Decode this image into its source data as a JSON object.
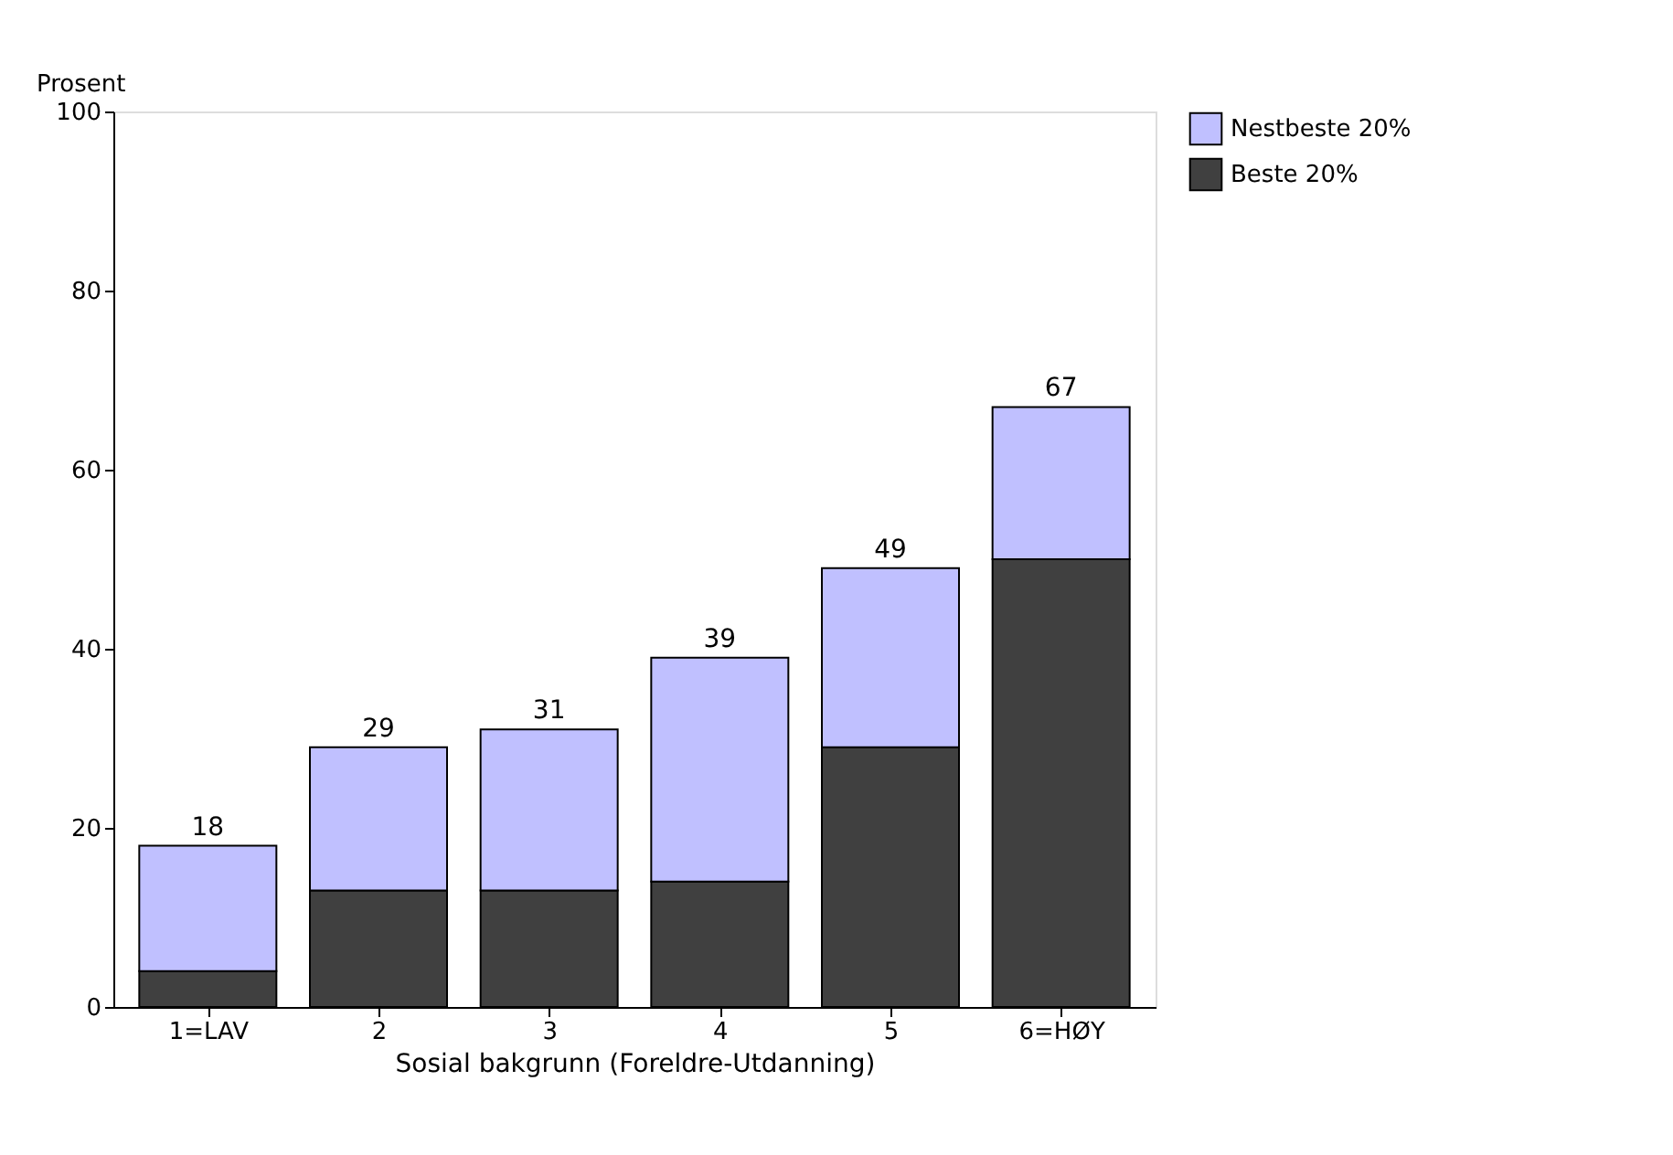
{
  "chart_data": {
    "type": "bar",
    "stacked": true,
    "xlabel": "Sosial bakgrunn (Foreldre-Utdanning)",
    "ylabel": "Prosent",
    "categories": [
      "1=LAV",
      "2",
      "3",
      "4",
      "5",
      "6=HØY"
    ],
    "series": [
      {
        "name": "Beste 20%",
        "color": "#404040",
        "values": [
          4,
          13,
          13,
          14,
          29,
          50
        ]
      },
      {
        "name": "Nestbeste 20%",
        "color": "#c0c0ff",
        "values": [
          14,
          16,
          18,
          25,
          20,
          17
        ]
      }
    ],
    "totals": [
      "18",
      "29",
      "31",
      "39",
      "49",
      "67"
    ],
    "ylim": [
      0,
      100
    ],
    "yticks": [
      0,
      20,
      40,
      60,
      80,
      100
    ],
    "grid": false,
    "legend": "top right"
  }
}
